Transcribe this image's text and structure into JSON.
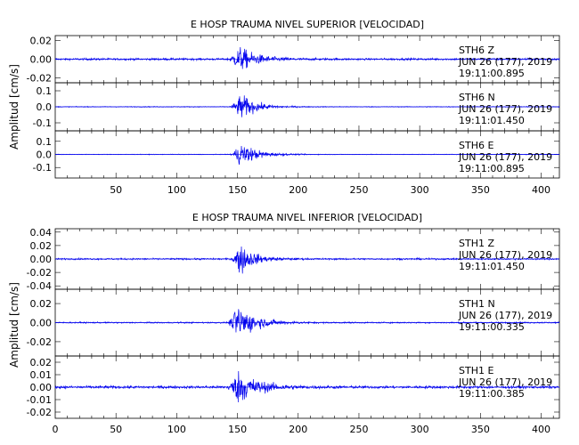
{
  "colors": {
    "trace": "#0000ee",
    "axis": "#000000"
  },
  "chart_data": [
    {
      "type": "line",
      "title": "E HOSP TRAUMA NIVEL SUPERIOR [VELOCIDAD]",
      "ylabel": "Amplitud [cm/s]",
      "xlim": [
        0,
        415
      ],
      "xticks": [
        "50",
        "100",
        "150",
        "200",
        "250",
        "300",
        "350",
        "400"
      ],
      "grid": false,
      "panels": [
        {
          "station": "STH6",
          "component": "Z",
          "date": "JUN 26 (177), 2019",
          "time": "19:11:00.895",
          "ylim": [
            -0.025,
            0.025
          ],
          "yticks": [
            "0.02",
            "0.00",
            "-0.02"
          ],
          "envelope": {
            "noise": 0.0018,
            "peak": 0.022,
            "onset": 141,
            "peak_at": 152,
            "decay": 14
          }
        },
        {
          "station": "STH6",
          "component": "N",
          "date": "JUN 26 (177), 2019",
          "time": "19:11:01.450",
          "ylim": [
            -0.15,
            0.15
          ],
          "yticks": [
            "0.1",
            "0.0",
            "-0.1"
          ],
          "envelope": {
            "noise": 0.004,
            "peak": 0.14,
            "onset": 143,
            "peak_at": 153,
            "decay": 12
          }
        },
        {
          "station": "STH6",
          "component": "E",
          "date": "JUN 26 (177), 2019",
          "time": "19:11:00.895",
          "ylim": [
            -0.18,
            0.18
          ],
          "yticks": [
            "0.1",
            "0.0",
            "-0.1"
          ],
          "envelope": {
            "noise": 0.004,
            "peak": 0.16,
            "onset": 143,
            "peak_at": 153,
            "decay": 13
          }
        }
      ]
    },
    {
      "type": "line",
      "title": "E HOSP TRAUMA NIVEL INFERIOR [VELOCIDAD]",
      "ylabel": "Amplitud [cm/s]",
      "xlim": [
        0,
        415
      ],
      "xticks": [
        "0",
        "50",
        "100",
        "150",
        "200",
        "250",
        "300",
        "350",
        "400"
      ],
      "grid": false,
      "panels": [
        {
          "station": "STH1",
          "component": "Z",
          "date": "JUN 26 (177), 2019",
          "time": "19:11:01.450",
          "ylim": [
            -0.045,
            0.045
          ],
          "yticks": [
            "0.04",
            "0.02",
            "0.00",
            "-0.02",
            "-0.04"
          ],
          "envelope": {
            "noise": 0.002,
            "peak": 0.04,
            "onset": 144,
            "peak_at": 152,
            "decay": 11
          }
        },
        {
          "station": "STH1",
          "component": "N",
          "date": "JUN 26 (177), 2019",
          "time": "19:11:00.335",
          "ylim": [
            -0.035,
            0.035
          ],
          "yticks": [
            "0.02",
            "0.00",
            "-0.02"
          ],
          "envelope": {
            "noise": 0.0012,
            "peak": 0.032,
            "onset": 141,
            "peak_at": 151,
            "decay": 14
          }
        },
        {
          "station": "STH1",
          "component": "E",
          "date": "JUN 26 (177), 2019",
          "time": "19:11:00.385",
          "ylim": [
            -0.025,
            0.025
          ],
          "yticks": [
            "0.02",
            "0.01",
            "0.00",
            "-0.01",
            "-0.02"
          ],
          "envelope": {
            "noise": 0.0018,
            "peak": 0.022,
            "onset": 140,
            "peak_at": 151,
            "decay": 16
          }
        }
      ]
    }
  ]
}
